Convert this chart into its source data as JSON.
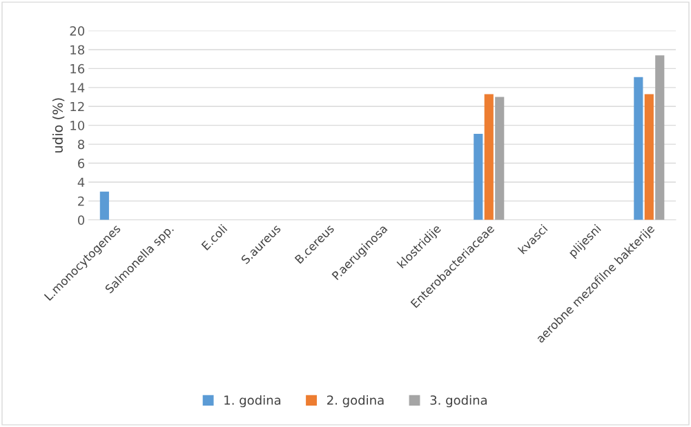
{
  "chart_data": {
    "type": "bar",
    "ylabel": "udio (%)",
    "categories": [
      "L.monocytogenes",
      "Salmonella spp.",
      "E.coli",
      "S.aureus",
      "B.cereus",
      "P.aeruginosa",
      "klostridije",
      "Enterobacteriaceae",
      "kvasci",
      "plijesni",
      "aerobne mezofilne bakterije"
    ],
    "series": [
      {
        "name": "1. godina",
        "color": "#5b9bd5",
        "values": [
          3.0,
          0,
          0,
          0,
          0,
          0,
          0,
          9.1,
          0,
          0,
          15.1
        ]
      },
      {
        "name": "2. godina",
        "color": "#ed7d31",
        "values": [
          0,
          0,
          0,
          0,
          0,
          0,
          0,
          13.3,
          0,
          0,
          13.3
        ]
      },
      {
        "name": "3. godina",
        "color": "#a5a5a5",
        "values": [
          0,
          0,
          0,
          0,
          0,
          0,
          0,
          13.0,
          0,
          0,
          17.4
        ]
      }
    ],
    "ylim": [
      0,
      20
    ],
    "yticks": [
      0,
      2,
      4,
      6,
      8,
      10,
      12,
      14,
      16,
      18,
      20
    ],
    "grid": "y",
    "legend": "bottom"
  }
}
